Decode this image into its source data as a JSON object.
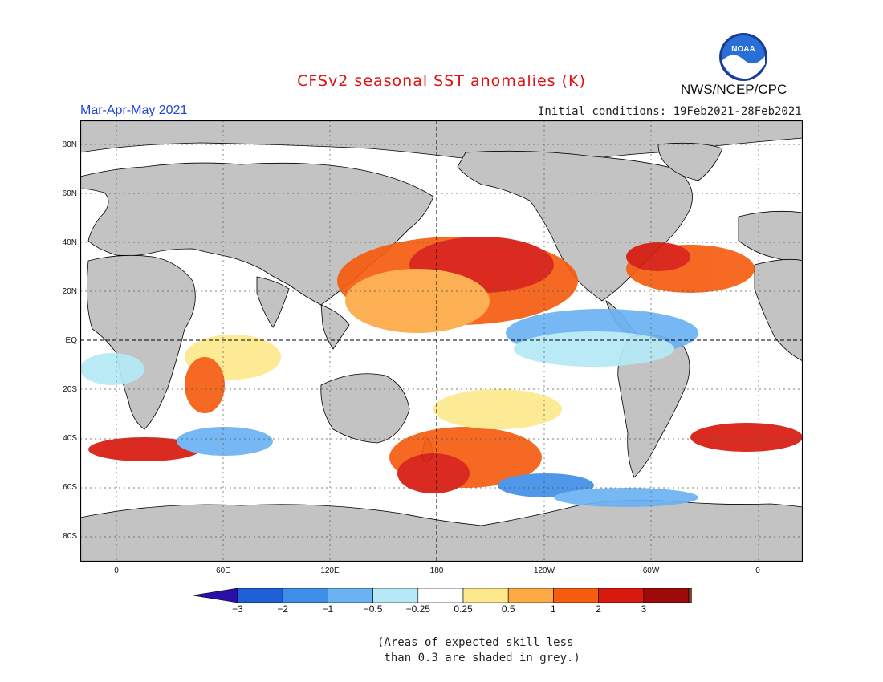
{
  "title": "CFSv2 seasonal SST anomalies (K)",
  "agency": "NWS/NCEP/CPC",
  "logo_text": "NOAA",
  "season": "Mar-Apr-May 2021",
  "initial_conditions": "Initial conditions: 19Feb2021-28Feb2021",
  "lat_labels": [
    "80N",
    "60N",
    "40N",
    "20N",
    "EQ",
    "20S",
    "40S",
    "60S",
    "80S"
  ],
  "lon_labels": [
    "0",
    "60E",
    "120E",
    "180",
    "120W",
    "60W",
    "0"
  ],
  "colorbar": {
    "labels": [
      "-3",
      "-2",
      "-1",
      "-0.5",
      "-0.25",
      "0.25",
      "0.5",
      "1",
      "2",
      "3"
    ],
    "colors": [
      "#2a0fa8",
      "#1f5fd6",
      "#3f8fe8",
      "#6bb2f2",
      "#b4e9f5",
      "#ffffff",
      "#fde98b",
      "#fcaa45",
      "#f65d10",
      "#d81a0e",
      "#9c0a0a",
      "#7a4a3a"
    ]
  },
  "colors": {
    "land": "#c3c3c3",
    "ocean_neutral": "#ffffff",
    "title": "#e01010",
    "season": "#2244dd"
  },
  "note_lines": [
    "(Areas of expected skill less",
    " than 0.3 are shaded in grey.)"
  ]
}
